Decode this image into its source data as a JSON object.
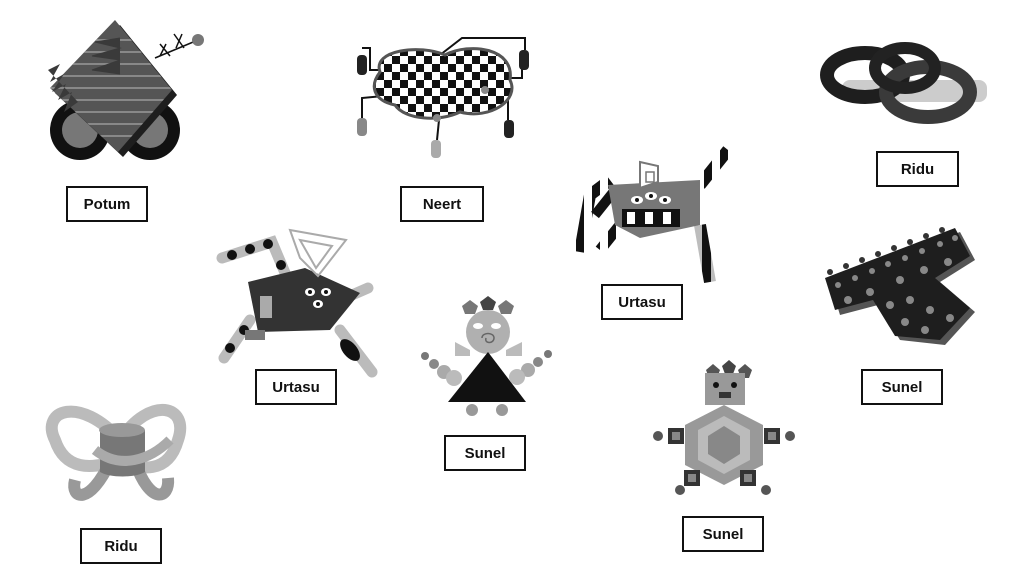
{
  "colors": {
    "dark": "#3a3a3a",
    "mid": "#808080",
    "light": "#b5b5b5",
    "black": "#111111"
  },
  "labels": [
    {
      "name": "potum",
      "text": "Potum"
    },
    {
      "name": "neert",
      "text": "Neert"
    },
    {
      "name": "ridu-1",
      "text": "Ridu"
    },
    {
      "name": "urtasu-1",
      "text": "Urtasu"
    },
    {
      "name": "urtasu-2",
      "text": "Urtasu"
    },
    {
      "name": "sunel-1",
      "text": "Sunel"
    },
    {
      "name": "sunel-2",
      "text": "Sunel"
    },
    {
      "name": "ridu-2",
      "text": "Ridu"
    },
    {
      "name": "sunel-3",
      "text": "Sunel"
    }
  ]
}
